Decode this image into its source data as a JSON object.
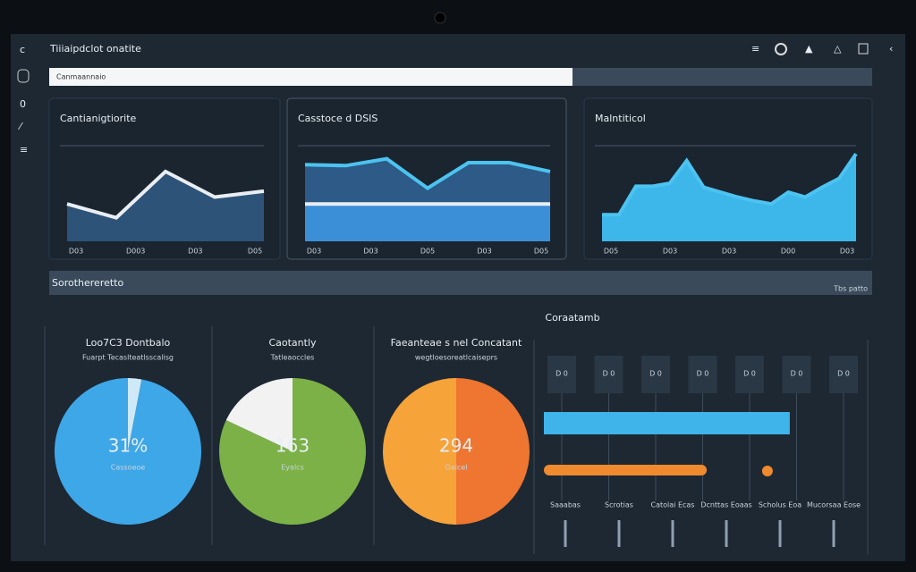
{
  "header": {
    "title": "Tiiiaipdclot onatite",
    "search_placeholder": "Canmaannaio"
  },
  "panels": [
    {
      "title": "Cantianigtiorite",
      "chart": {
        "type": "area",
        "tick_labels": [
          "D03",
          "D003",
          "D03",
          "D05"
        ],
        "ylim": [
          0,
          100
        ],
        "series": [
          {
            "color": "#e9eef3",
            "fill": "#2e5378",
            "values": [
              38,
              24,
              71,
              45,
              51
            ]
          }
        ]
      }
    },
    {
      "title": "Casstoce d DSIS",
      "chart": {
        "type": "area",
        "tick_labels": [
          "D03",
          "D03",
          "D05",
          "D03",
          "D05"
        ],
        "ylim": [
          0,
          100
        ],
        "series": [
          {
            "color": "#4cc3f0",
            "fill": "#2d5a86",
            "values": [
              78,
              77,
              84,
              54,
              80,
              80,
              71
            ]
          },
          {
            "color": "#e9eef3",
            "fill": "#3b8fd6",
            "values": [
              38,
              38
            ]
          }
        ]
      }
    },
    {
      "title": "Malntiticol",
      "chart": {
        "type": "area",
        "tick_labels": [
          "D05",
          "D03",
          "D03",
          "D00",
          "D03"
        ],
        "ylim": [
          0,
          100
        ],
        "series": [
          {
            "color": "#4cc3f0",
            "fill": "#3db6ea",
            "values": [
              27,
              27,
              56,
              56,
              59,
              82,
              55,
              50,
              45,
              41,
              38,
              50,
              45,
              55,
              64,
              89
            ]
          }
        ]
      }
    }
  ],
  "banner": {
    "left": "Sorothereretto",
    "right": "Tbs patto"
  },
  "section_title": "Coraatamb",
  "pies": [
    {
      "title": "Loo7C3 Dontbalo",
      "subtitle": "Fuarpt Tecaslteatlsscalisg",
      "value": "31%",
      "caption": "Cassoeoe",
      "slices": [
        {
          "value": 3,
          "color": "#cfe9f8"
        },
        {
          "value": 97,
          "color": "#3ea7e8"
        }
      ]
    },
    {
      "title": "Caotantly",
      "subtitle": "Tatleaoccles",
      "value": "163",
      "caption": "Eyalcs",
      "slices": [
        {
          "value": 82,
          "color": "#7bb146"
        },
        {
          "value": 18,
          "color": "#f2f2f2"
        }
      ]
    },
    {
      "title": "Faeanteae s nel Concatant",
      "subtitle": "wegtloesoreatlcaiseprs",
      "value": "294",
      "caption": "Oaicel",
      "slices": [
        {
          "value": 50,
          "color": "#ee7630"
        },
        {
          "value": 50,
          "color": "#f6a33a"
        }
      ]
    }
  ],
  "timeline": {
    "columns": [
      "D 0",
      "D 0",
      "D 0",
      "D 0",
      "D 0",
      "D 0",
      "D 0"
    ],
    "bars": [
      {
        "value": 77,
        "color": "#3fb4ea"
      },
      {
        "value": 51,
        "color": "#f08a2e"
      }
    ],
    "marker": 70,
    "xlim": [
      0,
      100
    ],
    "labels": [
      "Saaabas",
      "Scrotias",
      "Catolai Ecas",
      "Dcnttas Eoaas",
      "Scholus Eoa",
      "Mucorsaa Eose"
    ]
  }
}
